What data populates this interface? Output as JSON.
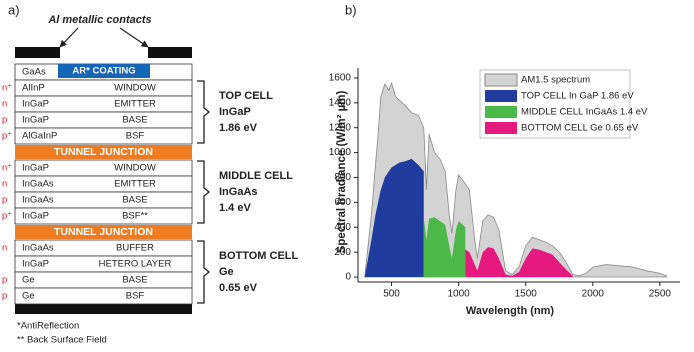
{
  "diagram": {
    "panel_label": "a)",
    "contacts_label": "Al metallic contacts",
    "layers": [
      {
        "material": "GaAs",
        "name": "AR* COATING",
        "kind": "coating"
      },
      {
        "doping": "n⁺",
        "material": "AlInP",
        "name": "WINDOW"
      },
      {
        "doping": "n",
        "material": "InGaP",
        "name": "EMITTER"
      },
      {
        "doping": "p",
        "material": "InGaP",
        "name": "BASE"
      },
      {
        "doping": "p⁺",
        "material": "AlGaInP",
        "name": "BSF"
      },
      {
        "name": "TUNNEL JUNCTION",
        "kind": "tunnel"
      },
      {
        "doping": "n⁺",
        "material": "InGaP",
        "name": "WINDOW"
      },
      {
        "doping": "n",
        "material": "InGaAs",
        "name": "EMITTER"
      },
      {
        "doping": "p",
        "material": "InGaAs",
        "name": "BASE"
      },
      {
        "doping": "p⁺",
        "material": "InGaP",
        "name": "BSF**"
      },
      {
        "name": "TUNNEL JUNCTION",
        "kind": "tunnel"
      },
      {
        "doping": "n",
        "material": "InGaAs",
        "name": "BUFFER"
      },
      {
        "material": "InGaP",
        "name": "HETERO LAYER"
      },
      {
        "doping": "p",
        "material": "Ge",
        "name": "BASE"
      },
      {
        "doping": "p",
        "material": "Ge",
        "name": "BSF"
      }
    ],
    "cells": [
      {
        "name": "TOP CELL",
        "material": "InGaP",
        "gap": "1.86 eV",
        "first_layer": 1,
        "last_layer": 4
      },
      {
        "name": "MIDDLE CELL",
        "material": "InGaAs",
        "gap": "1.4 eV",
        "first_layer": 6,
        "last_layer": 9
      },
      {
        "name": "BOTTOM CELL",
        "material": "Ge",
        "gap": "0.65 eV",
        "first_layer": 11,
        "last_layer": 14
      }
    ],
    "footnotes": [
      "*AntiReflection",
      "** Back Surface Field"
    ]
  },
  "chart_data": {
    "type": "area",
    "panel_label": "b)",
    "x_label": "Wavelength (nm)",
    "y_label": "Spectral Irradiance (W/m² µm)",
    "x": [
      300,
      350,
      380,
      400,
      420,
      450,
      480,
      500,
      530,
      560,
      600,
      650,
      700,
      740,
      760,
      780,
      820,
      860,
      900,
      930,
      950,
      980,
      1000,
      1050,
      1080,
      1120,
      1140,
      1180,
      1220,
      1260,
      1300,
      1350,
      1400,
      1450,
      1500,
      1550,
      1600,
      1650,
      1700,
      1750,
      1800,
      1850,
      1900,
      1950,
      2000,
      2100,
      2200,
      2300,
      2400,
      2500,
      2550
    ],
    "series": [
      {
        "name": "AM1.5 spectrum",
        "color": "#d3d3d3",
        "values": [
          0,
          500,
          900,
          1150,
          1450,
          1550,
          1500,
          1560,
          1450,
          1420,
          1380,
          1320,
          1300,
          1200,
          700,
          1150,
          1000,
          950,
          850,
          500,
          350,
          700,
          820,
          750,
          700,
          300,
          150,
          450,
          500,
          480,
          380,
          50,
          20,
          80,
          250,
          320,
          300,
          280,
          250,
          200,
          120,
          20,
          10,
          30,
          80,
          100,
          90,
          80,
          50,
          30,
          10
        ]
      },
      {
        "name": "TOP CELL In GaP 1.86 eV",
        "color": "#1f3c9e",
        "values": [
          0,
          300,
          500,
          600,
          700,
          800,
          850,
          880,
          900,
          920,
          930,
          950,
          900,
          850,
          null,
          null,
          null,
          null,
          null,
          null,
          null,
          null,
          null,
          null,
          null,
          null,
          null,
          null,
          null,
          null,
          null,
          null,
          null,
          null,
          null,
          null,
          null,
          null,
          null,
          null,
          null,
          null,
          null,
          null,
          null,
          null,
          null,
          null,
          null,
          null,
          null
        ]
      },
      {
        "name": "MIDDLE CELL InGaAs 1.4 eV",
        "color": "#4cb848",
        "values": [
          null,
          null,
          null,
          null,
          null,
          null,
          null,
          null,
          null,
          null,
          null,
          null,
          null,
          480,
          300,
          470,
          480,
          450,
          420,
          250,
          150,
          380,
          450,
          400,
          null,
          null,
          null,
          null,
          null,
          null,
          null,
          null,
          null,
          null,
          null,
          null,
          null,
          null,
          null,
          null,
          null,
          null,
          null,
          null,
          null,
          null,
          null,
          null,
          null,
          null,
          null
        ]
      },
      {
        "name": "BOTTOM CELL Ge 0.65 eV",
        "color": "#e6197f",
        "values": [
          null,
          null,
          null,
          null,
          null,
          null,
          null,
          null,
          null,
          null,
          null,
          null,
          null,
          null,
          null,
          null,
          null,
          null,
          null,
          null,
          null,
          null,
          null,
          220,
          200,
          100,
          50,
          200,
          240,
          230,
          150,
          20,
          10,
          40,
          150,
          230,
          220,
          200,
          180,
          120,
          60,
          10,
          null,
          null,
          null,
          null,
          null,
          null,
          null,
          null,
          null
        ]
      }
    ],
    "xlim": [
      250,
      2650
    ],
    "ylim": [
      -40,
      1680
    ],
    "xticks": [
      500,
      1000,
      1500,
      2000,
      2500
    ],
    "yticks": [
      0,
      200,
      400,
      600,
      800,
      1000,
      1200,
      1400,
      1600
    ],
    "grid": false,
    "legend": "top-center"
  }
}
